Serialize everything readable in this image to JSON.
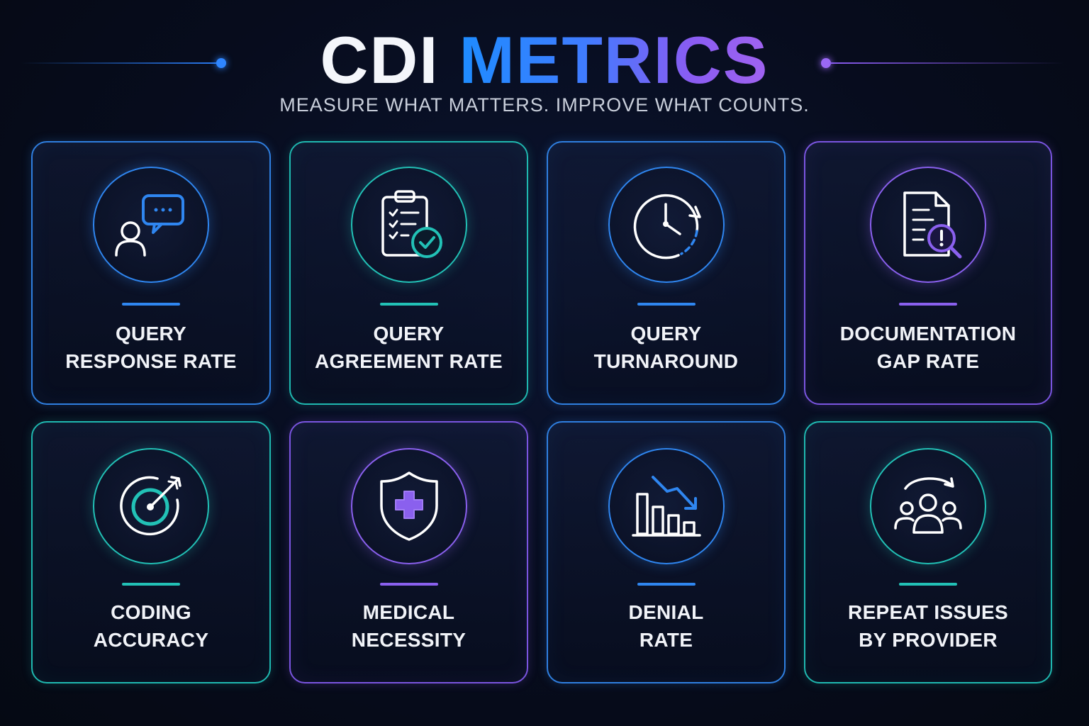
{
  "header": {
    "title_part1": "CDI",
    "title_part2": "METRICS",
    "subtitle": "MEASURE WHAT MATTERS. IMPROVE WHAT COUNTS."
  },
  "colors": {
    "blue": "#2f86f0",
    "teal": "#22c1b6",
    "purple": "#8a60ee",
    "background": "#070c1d"
  },
  "metrics": [
    {
      "line1": "QUERY",
      "line2": "RESPONSE RATE",
      "icon": "chat-person-icon",
      "accent": "blue"
    },
    {
      "line1": "QUERY",
      "line2": "AGREEMENT RATE",
      "icon": "clipboard-check-icon",
      "accent": "teal"
    },
    {
      "line1": "QUERY",
      "line2": "TURNAROUND",
      "icon": "clock-icon",
      "accent": "blue"
    },
    {
      "line1": "DOCUMENTATION",
      "line2": "GAP RATE",
      "icon": "document-search-alert-icon",
      "accent": "purple"
    },
    {
      "line1": "CODING",
      "line2": "ACCURACY",
      "icon": "target-arrow-icon",
      "accent": "teal"
    },
    {
      "line1": "MEDICAL",
      "line2": "NECESSITY",
      "icon": "shield-plus-icon",
      "accent": "purple"
    },
    {
      "line1": "DENIAL",
      "line2": "RATE",
      "icon": "bar-chart-down-icon",
      "accent": "blue"
    },
    {
      "line1": "REPEAT ISSUES",
      "line2": "BY PROVIDER",
      "icon": "group-repeat-icon",
      "accent": "teal"
    }
  ]
}
